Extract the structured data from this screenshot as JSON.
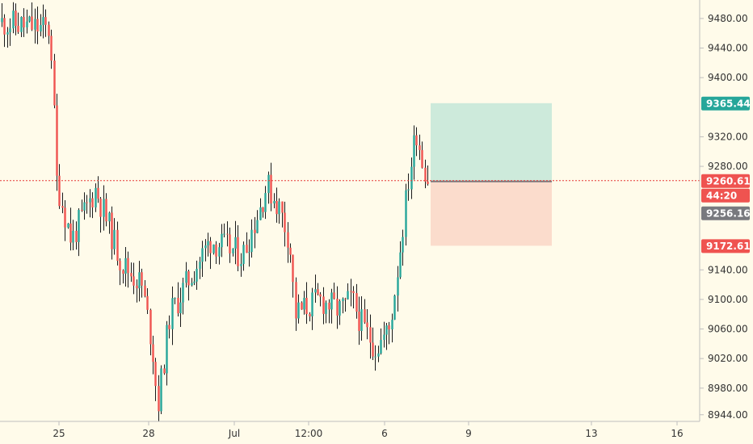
{
  "colors": {
    "background": "#fffbea",
    "up": "#26a69a",
    "down": "#ef5350",
    "wick": "#1a1a1a",
    "target_zone": "#cdeadb",
    "stop_zone": "#fbdccc",
    "price_line": "#e53935",
    "axis_line": "#bfbfbf",
    "countdown_badge": "#ef5350",
    "last_price_badge": "#78797e"
  },
  "axis": {
    "price_ticks": [
      "9480.00",
      "9440.00",
      "9400.00",
      "9320.00",
      "9280.00",
      "9140.00",
      "9100.00",
      "9060.00",
      "9020.00",
      "8980.00",
      "8944.00"
    ],
    "time_labels": [
      "25",
      "28",
      "Jul",
      "12:00",
      "6",
      "9",
      "13",
      "16"
    ]
  },
  "badges": {
    "target": "9365.44",
    "current": "9260.61",
    "countdown": "44:20",
    "last": "9256.16",
    "stop": "9172.61"
  },
  "position": {
    "target": 9365.44,
    "entry": 9260.61,
    "stop": 9172.61
  },
  "chart_data": {
    "type": "candlestick",
    "y_range": [
      8935,
      9505
    ],
    "key_points": [
      {
        "label": "before 25",
        "close": 9460
      },
      {
        "label": "25",
        "close": 9230
      },
      {
        "label": "28",
        "close": 8960
      },
      {
        "label": "Jul",
        "close": 9160
      },
      {
        "label": "12:00",
        "close": 9090
      },
      {
        "label": "6",
        "close": 9030
      },
      {
        "label": "peak",
        "high": 9375
      },
      {
        "label": "last",
        "close": 9260.61
      }
    ]
  }
}
